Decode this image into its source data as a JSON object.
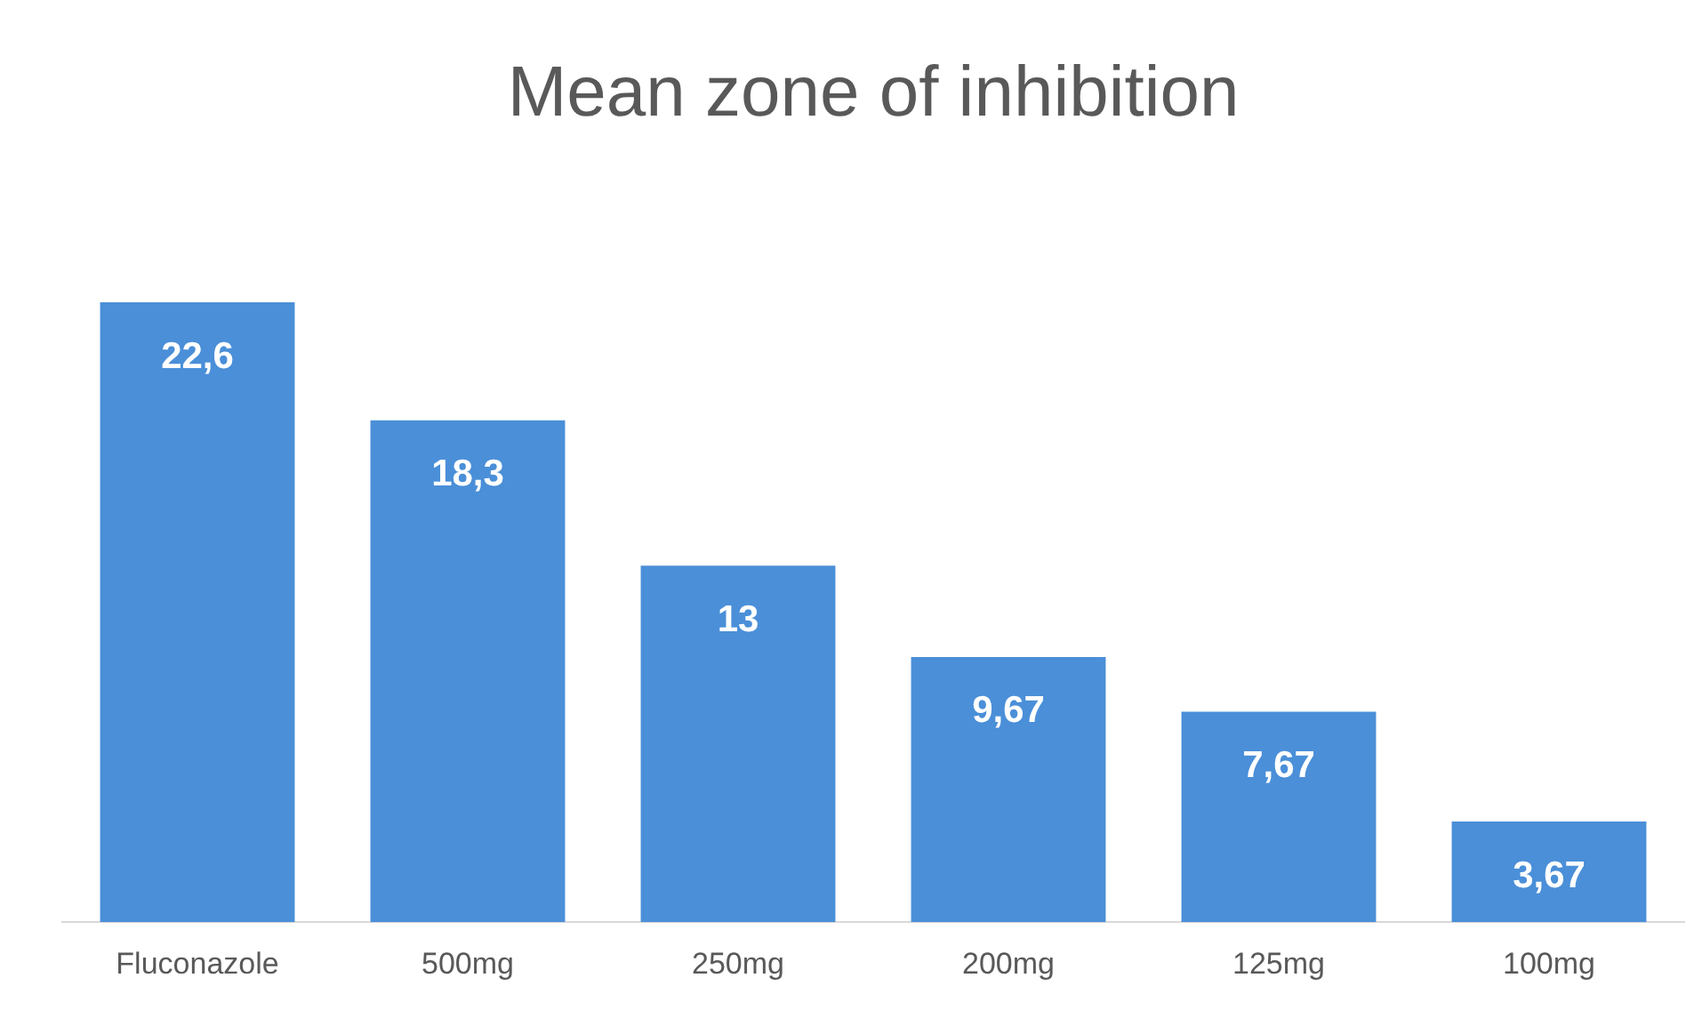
{
  "chart_data": {
    "type": "bar",
    "title": "Mean zone of inhibition",
    "categories": [
      "Fluconazole",
      "500mg",
      "250mg",
      "200mg",
      "125mg",
      "100mg"
    ],
    "values": [
      22.6,
      18.3,
      13,
      9.67,
      7.67,
      3.67
    ],
    "value_labels": [
      "22,6",
      "18,3",
      "13",
      "9,67",
      "7,67",
      "3,67"
    ],
    "color": "#4a8fd8",
    "grid": false,
    "legend": false
  }
}
